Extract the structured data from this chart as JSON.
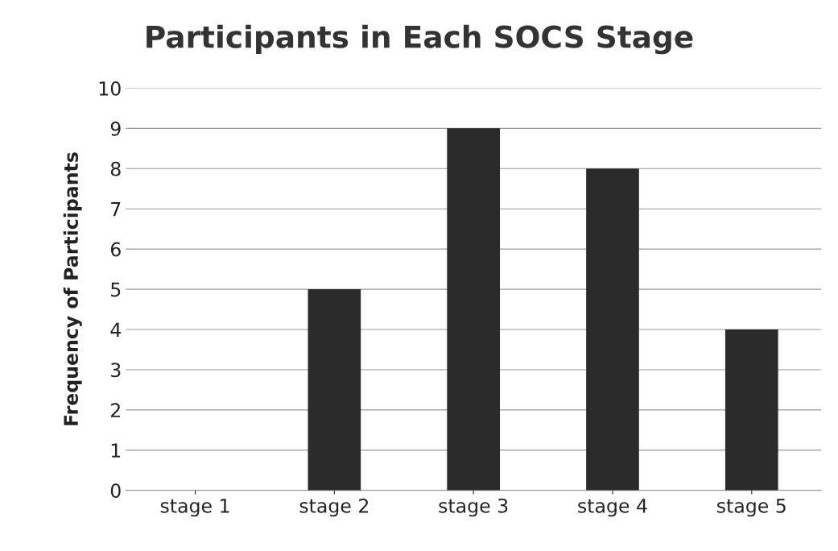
{
  "chart_data": {
    "type": "bar",
    "title": "Participants in Each SOCS Stage",
    "ylabel": "Frequency of Participants",
    "categories": [
      "stage 1",
      "stage 2",
      "stage 3",
      "stage 4",
      "stage 5"
    ],
    "values": [
      0,
      5,
      9,
      8,
      4
    ],
    "color": "#2b2b2b",
    "ylim": [
      0,
      10
    ],
    "yticks": [
      0,
      1,
      2,
      3,
      4,
      5,
      6,
      7,
      8,
      9,
      10
    ],
    "grid": "y"
  }
}
